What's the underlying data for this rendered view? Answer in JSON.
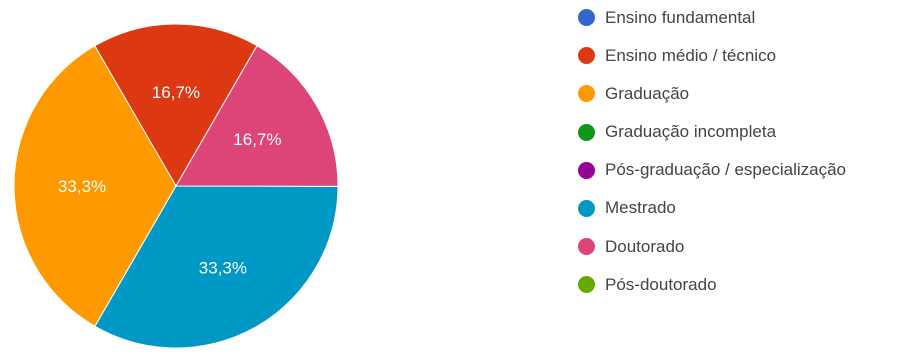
{
  "chart_data": {
    "type": "pie",
    "title": "",
    "categories": [
      "Ensino fundamental",
      "Ensino médio / técnico",
      "Graduação",
      "Graduação incompleta",
      "Pós-graduação / especialização",
      "Mestrado",
      "Doutorado",
      "Pós-doutorado"
    ],
    "values": [
      0,
      16.7,
      33.3,
      0,
      0,
      33.3,
      16.7,
      0
    ],
    "value_labels": [
      "",
      "16,7%",
      "33,3%",
      "",
      "",
      "33,3%",
      "16,7%",
      ""
    ],
    "colors": [
      "#3366cc",
      "#dc3912",
      "#ff9900",
      "#109618",
      "#990099",
      "#0099c6",
      "#dd4477",
      "#66aa00"
    ],
    "legend_position": "right"
  }
}
